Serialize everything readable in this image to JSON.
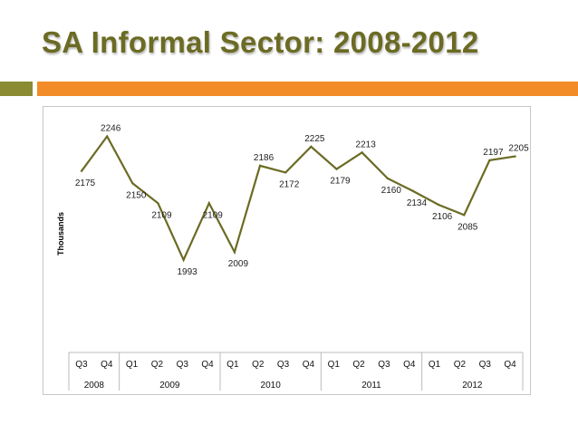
{
  "slide": {
    "title": "SA Informal Sector: 2008-2012",
    "accent_olive": "#8b8b34",
    "accent_orange": "#f28c28",
    "title_color": "#6b6b24"
  },
  "chart_data": {
    "type": "line",
    "title": "",
    "xlabel": "",
    "ylabel": "Thousands",
    "categories": [
      "Q3",
      "Q4",
      "Q1",
      "Q2",
      "Q3",
      "Q4",
      "Q1",
      "Q2",
      "Q3",
      "Q4",
      "Q1",
      "Q2",
      "Q3",
      "Q4",
      "Q1",
      "Q2",
      "Q3",
      "Q4"
    ],
    "years": [
      {
        "label": "2008",
        "span": 2
      },
      {
        "label": "2009",
        "span": 4
      },
      {
        "label": "2010",
        "span": 4
      },
      {
        "label": "2011",
        "span": 4
      },
      {
        "label": "2012",
        "span": 4
      }
    ],
    "series": [
      {
        "values": [
          2175,
          2246,
          2150,
          2109,
          1993,
          2109,
          2009,
          2186,
          2172,
          2225,
          2179,
          2213,
          2160,
          2134,
          2106,
          2085,
          2197,
          2205
        ],
        "color": "#6b6b24"
      }
    ],
    "label_placement": [
      "below",
      "above",
      "below",
      "below",
      "below",
      "below",
      "below",
      "above",
      "below",
      "above",
      "below",
      "above",
      "below",
      "below",
      "below",
      "below",
      "above",
      "above"
    ],
    "ylim": [
      1950,
      2260
    ],
    "grid": false,
    "legend": "none",
    "data_labels": true
  }
}
